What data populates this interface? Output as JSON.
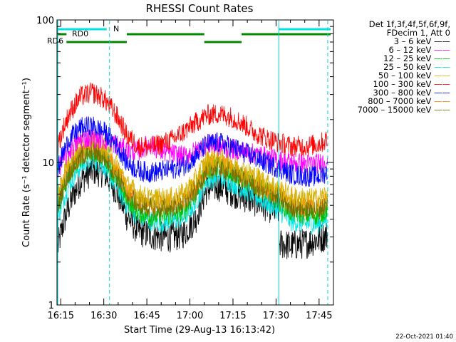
{
  "chart_data": {
    "type": "line",
    "title": "RHESSI Count Rates",
    "xlabel": "Start Time (29-Aug-13 16:13:42)",
    "ylabel": "Count Rate (s⁻¹ detector segment⁻¹)",
    "yscale": "log",
    "ylim": [
      1,
      100
    ],
    "xlim": [
      "16:13:42",
      "17:50:00"
    ],
    "x_tick_labels": [
      "16:15",
      "16:30",
      "16:45",
      "17:00",
      "17:15",
      "17:30",
      "17:45"
    ],
    "y_tick_labels": [
      "1",
      "10",
      "100"
    ],
    "legend_header": [
      "Det 1f,3f,4f,5f,6f,9f,",
      "FDecim 1, Att 0"
    ],
    "legend_position": "right",
    "timestamp": "22-Oct-2021 01:40",
    "vertical_markers": [
      {
        "time": "16:13:42",
        "style": "solid",
        "color": "#00d8d8"
      },
      {
        "time": "16:32",
        "style": "dashed",
        "color": "#00d8d8"
      },
      {
        "time": "17:31",
        "style": "solid",
        "color": "#00d8d8"
      },
      {
        "time": "17:48",
        "style": "dashed",
        "color": "#00d8d8"
      }
    ],
    "flag_bars": [
      {
        "label": "N",
        "color": "#00e0e0",
        "segments": [
          [
            "16:14",
            "16:31"
          ],
          [
            "17:31",
            "17:49"
          ]
        ]
      },
      {
        "label": "RD0",
        "color": "#008800",
        "segments": [
          [
            "16:14",
            "16:17"
          ],
          [
            "16:38",
            "17:05"
          ],
          [
            "17:18",
            "17:49"
          ]
        ]
      },
      {
        "label": "RD6",
        "color": "#008800",
        "segments": [
          [
            "16:17",
            "16:38"
          ],
          [
            "17:05",
            "17:18"
          ]
        ]
      }
    ],
    "series": [
      {
        "name": "3 – 6 keV",
        "color": "#000000",
        "x": [
          "16:14",
          "16:18",
          "16:22",
          "16:26",
          "16:30",
          "16:34",
          "16:38",
          "16:42",
          "16:46",
          "16:50",
          "16:54",
          "16:58",
          "17:02",
          "17:06",
          "17:10",
          "17:14",
          "17:18",
          "17:22",
          "17:26",
          "17:30",
          "17:31",
          "17:35",
          "17:40",
          "17:45",
          "17:48"
        ],
        "values": [
          2.5,
          5.0,
          7.5,
          8.8,
          8.5,
          6.5,
          4.2,
          3.3,
          3.1,
          3.0,
          3.0,
          3.2,
          4.0,
          6.5,
          6.8,
          6.3,
          5.8,
          5.4,
          5.0,
          4.6,
          2.7,
          2.6,
          2.7,
          2.9,
          3.1
        ]
      },
      {
        "name": "6 – 12 keV",
        "color": "#ff00ff",
        "x": [
          "16:14",
          "16:18",
          "16:22",
          "16:26",
          "16:30",
          "16:34",
          "16:38",
          "16:42",
          "16:46",
          "16:50",
          "16:54",
          "16:58",
          "17:02",
          "17:06",
          "17:10",
          "17:14",
          "17:18",
          "17:22",
          "17:26",
          "17:30",
          "17:35",
          "17:40",
          "17:45",
          "17:48"
        ],
        "values": [
          9.0,
          12.0,
          14.5,
          15.0,
          14.5,
          13.5,
          12.0,
          12.0,
          13.5,
          12.0,
          11.5,
          11.0,
          12.0,
          13.5,
          13.0,
          12.5,
          12.0,
          11.5,
          11.0,
          10.5,
          10.0,
          9.8,
          9.8,
          10.5
        ]
      },
      {
        "name": "12 – 25 keV",
        "color": "#00c000",
        "x": [
          "16:14",
          "16:18",
          "16:22",
          "16:26",
          "16:30",
          "16:34",
          "16:38",
          "16:42",
          "16:46",
          "16:50",
          "16:54",
          "16:58",
          "17:02",
          "17:06",
          "17:10",
          "17:14",
          "17:18",
          "17:22",
          "17:26",
          "17:30",
          "17:35",
          "17:40",
          "17:45",
          "17:48"
        ],
        "values": [
          4.8,
          8.5,
          11.0,
          12.0,
          11.0,
          8.0,
          5.5,
          4.5,
          4.2,
          4.2,
          4.3,
          4.6,
          6.0,
          8.8,
          9.5,
          8.6,
          7.8,
          7.0,
          6.3,
          5.6,
          4.5,
          4.3,
          4.3,
          4.7
        ]
      },
      {
        "name": "25 – 50 keV",
        "color": "#00e5e5",
        "x": [
          "16:14",
          "16:18",
          "16:22",
          "16:26",
          "16:30",
          "16:34",
          "16:38",
          "16:42",
          "16:46",
          "16:50",
          "16:54",
          "16:58",
          "17:02",
          "17:06",
          "17:10",
          "17:14",
          "17:18",
          "17:22",
          "17:26",
          "17:30",
          "17:35",
          "17:40",
          "17:45",
          "17:48"
        ],
        "values": [
          4.0,
          7.0,
          9.5,
          10.5,
          9.5,
          7.0,
          5.0,
          4.2,
          3.9,
          3.8,
          3.9,
          4.1,
          5.2,
          7.5,
          8.0,
          7.3,
          6.6,
          5.9,
          5.3,
          4.8,
          3.9,
          3.7,
          3.7,
          4.1
        ]
      },
      {
        "name": "50 – 100 keV",
        "color": "#d8b000",
        "x": [
          "16:14",
          "16:18",
          "16:22",
          "16:26",
          "16:30",
          "16:34",
          "16:38",
          "16:42",
          "16:46",
          "16:50",
          "16:54",
          "16:58",
          "17:02",
          "17:06",
          "17:10",
          "17:14",
          "17:18",
          "17:22",
          "17:26",
          "17:30",
          "17:35",
          "17:40",
          "17:45",
          "17:48"
        ],
        "values": [
          6.0,
          10.5,
          13.5,
          14.5,
          13.0,
          10.0,
          7.0,
          6.0,
          5.6,
          5.6,
          5.7,
          6.1,
          7.6,
          10.5,
          11.0,
          10.0,
          9.0,
          8.2,
          7.4,
          6.8,
          5.8,
          5.6,
          5.6,
          6.1
        ]
      },
      {
        "name": "100 – 300 keV",
        "color": "#ff0000",
        "x": [
          "16:14",
          "16:18",
          "16:22",
          "16:26",
          "16:30",
          "16:34",
          "16:38",
          "16:42",
          "16:46",
          "16:50",
          "16:54",
          "16:58",
          "17:02",
          "17:06",
          "17:10",
          "17:14",
          "17:18",
          "17:22",
          "17:26",
          "17:30",
          "17:35",
          "17:40",
          "17:45",
          "17:48"
        ],
        "values": [
          13.0,
          22.0,
          29.0,
          31.0,
          28.0,
          22.0,
          15.5,
          13.0,
          12.8,
          13.5,
          14.5,
          16.5,
          19.0,
          21.5,
          22.0,
          21.0,
          19.0,
          16.5,
          15.0,
          14.0,
          13.0,
          13.0,
          13.5,
          14.5
        ]
      },
      {
        "name": "300 – 800 keV",
        "color": "#0000ff",
        "x": [
          "16:14",
          "16:18",
          "16:22",
          "16:26",
          "16:30",
          "16:34",
          "16:38",
          "16:42",
          "16:46",
          "16:50",
          "16:54",
          "16:58",
          "17:02",
          "17:06",
          "17:10",
          "17:14",
          "17:18",
          "17:22",
          "17:26",
          "17:30",
          "17:35",
          "17:40",
          "17:45",
          "17:48"
        ],
        "values": [
          9.0,
          14.5,
          17.5,
          18.0,
          16.5,
          13.5,
          10.0,
          8.8,
          8.5,
          8.7,
          9.0,
          9.5,
          11.0,
          13.5,
          13.8,
          13.0,
          12.0,
          11.0,
          10.0,
          9.3,
          8.3,
          8.0,
          8.0,
          8.6
        ]
      },
      {
        "name": "800 – 7000 keV",
        "color": "#ff8800",
        "x": [
          "16:14",
          "16:18",
          "16:22",
          "16:26",
          "16:30",
          "16:34",
          "16:38",
          "16:42",
          "16:46",
          "16:50",
          "16:54",
          "16:58",
          "17:02",
          "17:06",
          "17:10",
          "17:14",
          "17:18",
          "17:22",
          "17:26",
          "17:30",
          "17:35",
          "17:40",
          "17:45",
          "17:48"
        ],
        "values": [
          5.5,
          9.0,
          11.5,
          12.5,
          11.5,
          8.8,
          6.4,
          5.4,
          5.0,
          5.0,
          5.1,
          5.4,
          6.6,
          9.2,
          9.8,
          9.0,
          8.1,
          7.3,
          6.6,
          6.0,
          5.1,
          4.9,
          4.9,
          5.3
        ]
      },
      {
        "name": "7000 – 15000 keV",
        "color": "#707000",
        "x": [
          "16:14",
          "16:18",
          "16:22",
          "16:26",
          "16:30",
          "16:34",
          "16:38",
          "16:42",
          "16:46",
          "16:50",
          "16:54",
          "16:58",
          "17:02",
          "17:06",
          "17:10",
          "17:14",
          "17:18",
          "17:22",
          "17:26",
          "17:30",
          "17:35",
          "17:40",
          "17:45",
          "17:48"
        ],
        "values": [
          5.0,
          8.5,
          11.0,
          12.0,
          11.0,
          8.4,
          6.0,
          5.1,
          4.8,
          4.8,
          4.9,
          5.2,
          6.4,
          8.8,
          9.3,
          8.6,
          7.8,
          7.0,
          6.4,
          5.8,
          4.9,
          4.7,
          4.7,
          5.1
        ]
      }
    ]
  }
}
